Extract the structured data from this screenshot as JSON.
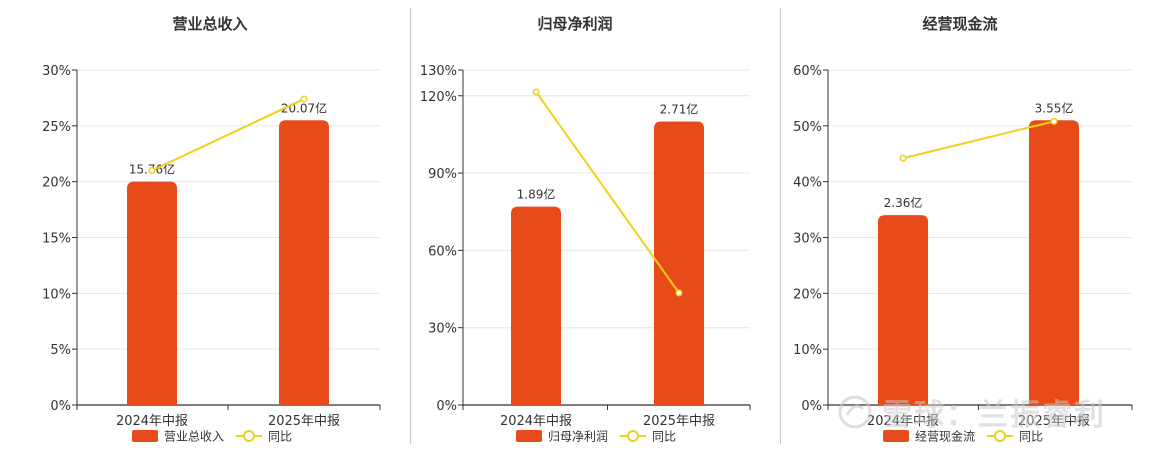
{
  "colors": {
    "bar": "#E84B1A",
    "line": "#F0D018",
    "axis": "#333333",
    "grid": "#e6e6e6",
    "text": "#333333"
  },
  "watermark": {
    "text": "雪球：兰振睿利"
  },
  "chart_data": [
    {
      "type": "bar",
      "title": "营业总收入",
      "categories": [
        "2024年中报",
        "2025年中报"
      ],
      "series": [
        {
          "name": "营业总收入",
          "kind": "bar",
          "values": [
            15.76,
            20.07
          ],
          "value_labels": [
            "15.76亿",
            "20.07亿"
          ]
        },
        {
          "name": "同比",
          "kind": "line",
          "values": [
            21.0,
            27.4
          ]
        }
      ],
      "ylim": [
        0,
        30
      ],
      "yticks": [
        0,
        5,
        10,
        15,
        20,
        25,
        30
      ],
      "ytick_labels": [
        "0%",
        "5%",
        "10%",
        "15%",
        "20%",
        "25%",
        "30%"
      ],
      "bar_heights_on_axis": [
        20.0,
        25.5
      ],
      "grid": true,
      "legend": "bottom-center"
    },
    {
      "type": "bar",
      "title": "归母净利润",
      "categories": [
        "2024年中报",
        "2025年中报"
      ],
      "series": [
        {
          "name": "归母净利润",
          "kind": "bar",
          "values": [
            1.89,
            2.71
          ],
          "value_labels": [
            "1.89亿",
            "2.71亿"
          ]
        },
        {
          "name": "同比",
          "kind": "line",
          "values": [
            121.5,
            43.5
          ]
        }
      ],
      "ylim": [
        0,
        130
      ],
      "yticks": [
        0,
        30,
        60,
        90,
        120,
        130
      ],
      "ytick_labels": [
        "0%",
        "30%",
        "60%",
        "90%",
        "120%",
        "130%"
      ],
      "bar_heights_on_axis": [
        77.0,
        110.0
      ],
      "grid": true,
      "legend": "bottom-center"
    },
    {
      "type": "bar",
      "title": "经营现金流",
      "categories": [
        "2024年中报",
        "2025年中报"
      ],
      "series": [
        {
          "name": "经营现金流",
          "kind": "bar",
          "values": [
            2.36,
            3.55
          ],
          "value_labels": [
            "2.36亿",
            "3.55亿"
          ]
        },
        {
          "name": "同比",
          "kind": "line",
          "values": [
            44.2,
            50.8
          ]
        }
      ],
      "ylim": [
        0,
        60
      ],
      "yticks": [
        0,
        10,
        20,
        30,
        40,
        50,
        60
      ],
      "ytick_labels": [
        "0%",
        "10%",
        "20%",
        "30%",
        "40%",
        "50%",
        "60%"
      ],
      "bar_heights_on_axis": [
        34.0,
        51.0
      ],
      "grid": true,
      "legend": "bottom-center"
    }
  ]
}
